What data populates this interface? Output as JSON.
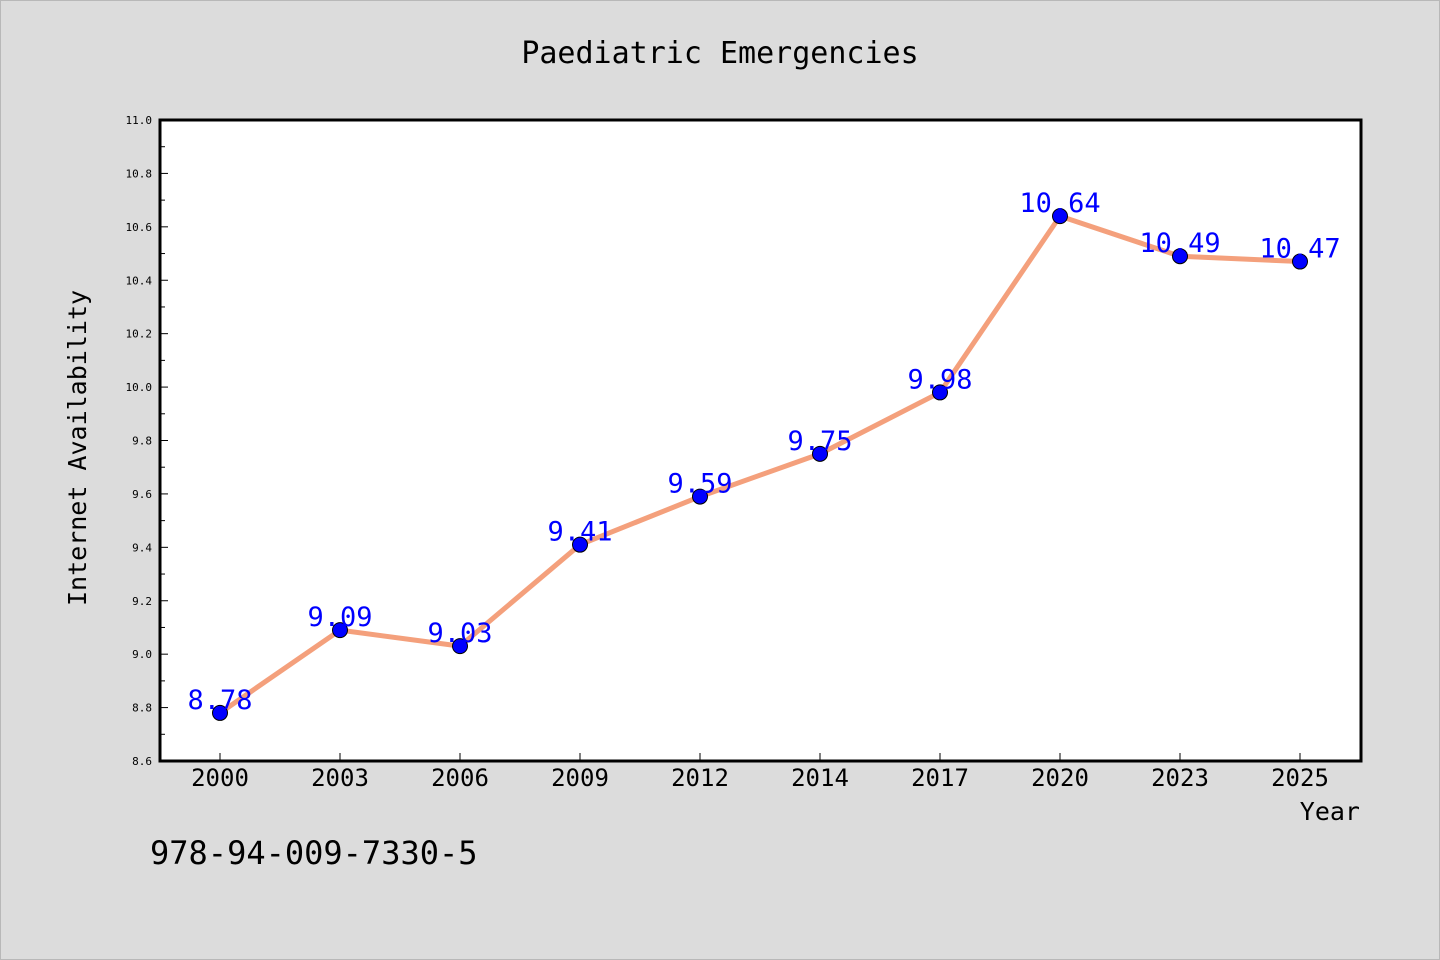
{
  "chart_data": {
    "type": "line",
    "title": "Paediatric Emergencies",
    "xlabel": "Year",
    "ylabel": "Internet Availability",
    "categories": [
      "2000",
      "2003",
      "2006",
      "2009",
      "2012",
      "2014",
      "2017",
      "2020",
      "2023",
      "2025"
    ],
    "series": [
      {
        "values": [
          8.78,
          9.09,
          9.03,
          9.41,
          9.59,
          9.75,
          9.98,
          10.64,
          10.49,
          10.47
        ]
      }
    ],
    "data_labels": [
      "8.78",
      "9.09",
      "9.03",
      "9.41",
      "9.59",
      "9.75",
      "9.98",
      "10.64",
      "10.49",
      "10.47"
    ],
    "ylim": [
      8.6,
      11.0
    ],
    "yticks": [
      "8.6",
      "8.8",
      "9.0",
      "9.2",
      "9.4",
      "9.6",
      "9.8",
      "10.0",
      "10.2",
      "10.4",
      "10.6",
      "10.8",
      "11.0"
    ],
    "grid": false,
    "legend": "none",
    "colors": {
      "background": "#dcdcdc",
      "plot_background": "#ffffff",
      "line": "#f4a07c",
      "marker": "#0000ff",
      "data_label": "#0000ff",
      "text": "#000000"
    }
  },
  "footnote": "978-94-009-7330-5"
}
